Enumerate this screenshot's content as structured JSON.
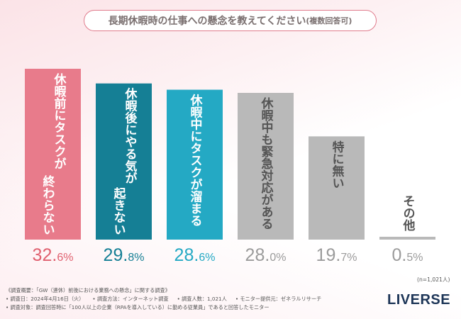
{
  "title": "長期休暇時の仕事への懸念を教えてください",
  "title_sub": "(複数回答可)",
  "sample_size": "(n=1,021人)",
  "chart_data": {
    "type": "bar",
    "categories": [
      "休暇前にタスクが終わらない",
      "休暇後にやる気が起きない",
      "休暇中にタスクが溜まる",
      "休暇中も緊急対応がある",
      "特に無い",
      "その他"
    ],
    "label_lines": [
      [
        "休暇前にタスクが",
        "終わらない"
      ],
      [
        "休暇後にやる気が",
        "起きない"
      ],
      [
        "休暇中にタスクが溜まる"
      ],
      [
        "休暇中も緊急対応がある"
      ],
      [
        "特に無い"
      ],
      [
        "その他"
      ]
    ],
    "values": [
      32.6,
      29.8,
      28.6,
      28.0,
      19.7,
      0.5
    ],
    "value_labels": [
      {
        "int": "32.",
        "dec": "6",
        "unit": "%"
      },
      {
        "int": "29.",
        "dec": "8",
        "unit": "%"
      },
      {
        "int": "28.",
        "dec": "6",
        "unit": "%"
      },
      {
        "int": "28.",
        "dec": "0",
        "unit": "%"
      },
      {
        "int": "19.",
        "dec": "7",
        "unit": "%"
      },
      {
        "int": "0.",
        "dec": "5",
        "unit": "%"
      }
    ],
    "bar_colors": [
      "#e87b8b",
      "#157f95",
      "#24a9c4",
      "#b9b9b9",
      "#b9b9b9",
      "#b9b9b9"
    ],
    "text_colors": [
      "#e0606f",
      "#157f95",
      "#24a9c4",
      "#9b9b9b",
      "#9b9b9b",
      "#9b9b9b"
    ],
    "ylim": [
      0,
      35
    ]
  },
  "footer": {
    "line1": "《調査概要：「GW（連休）前後における業務への懸念」に関する調査》",
    "line2a": "• 調査日：2024年4月16日（火）",
    "line2b": "• 調査方法：インターネット調査",
    "line2c": "• 調査人数：1,021人",
    "line2d": "• モニター提供元：ゼネラルリサーチ",
    "line3": "• 調査対象：調査回答時に「100人以上の企業（RPAを導入している）に勤める従業員」であると回答したモニター"
  },
  "logo": "LIVERSE"
}
